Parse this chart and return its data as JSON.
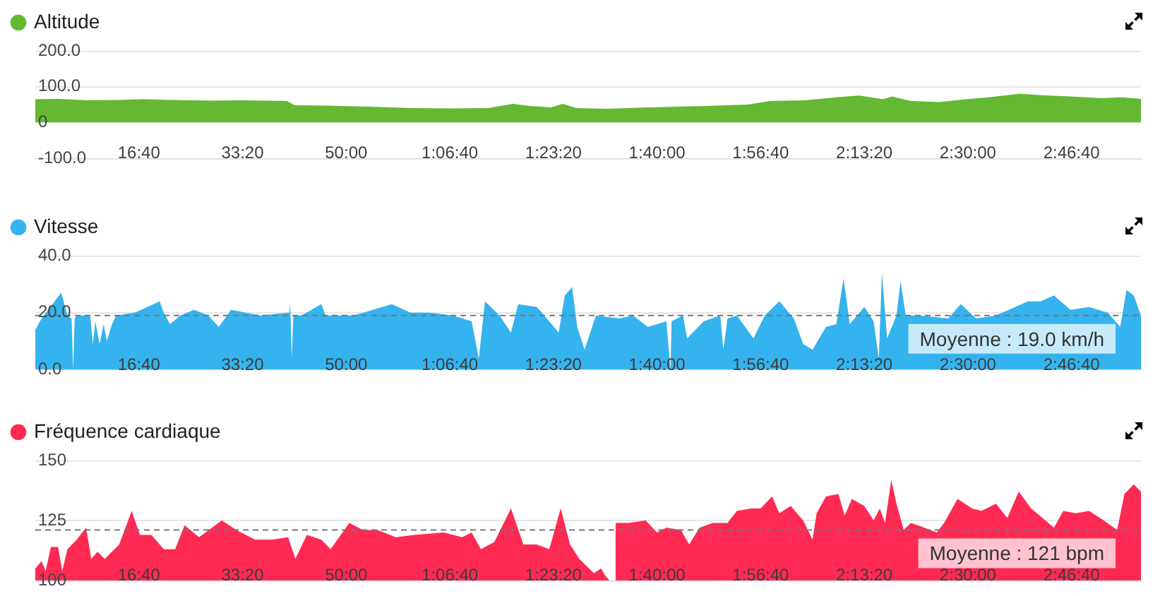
{
  "chart_data": [
    {
      "type": "area",
      "x": [
        0,
        220,
        490,
        830,
        1030,
        1300,
        1710,
        1980,
        2430,
        2500,
        2800,
        3210,
        3620,
        4030,
        4370,
        4610,
        4770,
        4980,
        5090,
        5220,
        5520,
        5930,
        6480,
        6880,
        7090,
        7430,
        7770,
        7950,
        8180,
        8270,
        8450,
        8720,
        8950,
        9200,
        9500,
        9710,
        10010,
        10290,
        10490,
        10670
      ],
      "series": [
        {
          "name": "Altitude",
          "color": "#64b832",
          "values": [
            65,
            66,
            62,
            63,
            65,
            63,
            61,
            62,
            60,
            48,
            47,
            44,
            40,
            39,
            40,
            52,
            46,
            42,
            52,
            40,
            38,
            42,
            46,
            50,
            60,
            62,
            71,
            75,
            65,
            72,
            60,
            57,
            64,
            70,
            80,
            76,
            72,
            68,
            70,
            66
          ]
        }
      ],
      "xlim": [
        0,
        10670
      ],
      "xticks": [
        {
          "value": 1000,
          "label": "16:40"
        },
        {
          "value": 2000,
          "label": "33:20"
        },
        {
          "value": 3000,
          "label": "50:00"
        },
        {
          "value": 4000,
          "label": "1:06:40"
        },
        {
          "value": 5000,
          "label": "1:23:20"
        },
        {
          "value": 6000,
          "label": "1:40:00"
        },
        {
          "value": 7000,
          "label": "1:56:40"
        },
        {
          "value": 8000,
          "label": "2:13:20"
        },
        {
          "value": 9000,
          "label": "2:30:00"
        },
        {
          "value": 10000,
          "label": "2:46:40"
        }
      ],
      "ylim": [
        -100,
        200
      ],
      "yticks": [
        {
          "value": -100,
          "label": "-100.0"
        },
        0,
        {
          "value": 100,
          "label": "100.0"
        },
        {
          "value": 200,
          "label": "200.0"
        }
      ],
      "grid": "y",
      "legend": "top left"
    },
    {
      "type": "area",
      "x": [
        0,
        60,
        250,
        310,
        350,
        365,
        380,
        400,
        530,
        555,
        580,
        620,
        660,
        690,
        740,
        780,
        960,
        1200,
        1240,
        1300,
        1400,
        1530,
        1670,
        1770,
        1890,
        2170,
        2450,
        2460,
        2475,
        2490,
        2570,
        2760,
        2800,
        3070,
        3440,
        3620,
        3800,
        4030,
        4210,
        4280,
        4340,
        4480,
        4590,
        4660,
        4840,
        4960,
        5050,
        5110,
        5180,
        5230,
        5300,
        5410,
        5640,
        5770,
        5910,
        6090,
        6130,
        6140,
        6250,
        6290,
        6450,
        6610,
        6640,
        6680,
        6770,
        6930,
        7040,
        7180,
        7320,
        7410,
        7500,
        7630,
        7730,
        7800,
        7860,
        8000,
        8090,
        8140,
        8170,
        8220,
        8310,
        8350,
        8400,
        8540,
        8810,
        8930,
        9080,
        9270,
        9580,
        9700,
        9830,
        9990,
        10170,
        10350,
        10470,
        10530,
        10600,
        10670
      ],
      "series": [
        {
          "name": "Vitesse",
          "color": "#34b3ee",
          "values": [
            14,
            18,
            27,
            19,
            18,
            0,
            18,
            19,
            19,
            9,
            17,
            9,
            16,
            10,
            16,
            19,
            20,
            24,
            20,
            16,
            19,
            21,
            19,
            15,
            21,
            19,
            20,
            23,
            4,
            19,
            19,
            23,
            19,
            19,
            23,
            20,
            20,
            19,
            17,
            4,
            24,
            19,
            13,
            23,
            22,
            17,
            13,
            26,
            29,
            15,
            7,
            19,
            18,
            19,
            15,
            17,
            0,
            17,
            19,
            11,
            17,
            19,
            7,
            18,
            19,
            11,
            19,
            24,
            18,
            9,
            7,
            15,
            16,
            32,
            16,
            22,
            17,
            4,
            34,
            11,
            19,
            31,
            19,
            19,
            18,
            23,
            18,
            19,
            24,
            24,
            26,
            21,
            22,
            20,
            15,
            28,
            26,
            19
          ]
        }
      ],
      "xlim": [
        0,
        10670
      ],
      "xticks": [
        {
          "value": 1000,
          "label": "16:40"
        },
        {
          "value": 2000,
          "label": "33:20"
        },
        {
          "value": 3000,
          "label": "50:00"
        },
        {
          "value": 4000,
          "label": "1:06:40"
        },
        {
          "value": 5000,
          "label": "1:23:20"
        },
        {
          "value": 6000,
          "label": "1:40:00"
        },
        {
          "value": 7000,
          "label": "1:56:40"
        },
        {
          "value": 8000,
          "label": "2:13:20"
        },
        {
          "value": 9000,
          "label": "2:30:00"
        },
        {
          "value": 10000,
          "label": "2:46:40"
        }
      ],
      "ylim": [
        0,
        40
      ],
      "yticks": [
        {
          "value": 0,
          "label": "0.0"
        },
        {
          "value": 20,
          "label": "20.0"
        },
        {
          "value": 40,
          "label": "40.0"
        }
      ],
      "grid": "y",
      "legend": "top left",
      "ref_lines": [
        {
          "axis": "y",
          "value": 19,
          "label": "Moyenne : 19.0 km/h",
          "color": "#777777",
          "line_style": "dashed"
        }
      ]
    },
    {
      "type": "area",
      "x": [
        0,
        60,
        100,
        150,
        220,
        260,
        310,
        400,
        490,
        540,
        600,
        670,
        810,
        930,
        1010,
        1120,
        1240,
        1350,
        1440,
        1580,
        1800,
        1940,
        2120,
        2280,
        2440,
        2510,
        2620,
        2760,
        2850,
        3030,
        3160,
        3300,
        3480,
        3660,
        3940,
        4120,
        4210,
        4300,
        4430,
        4590,
        4710,
        4840,
        4960,
        5070,
        5160,
        5250,
        5390,
        5460,
        5500,
        5540,
        5590,
        5600,
        5730,
        5890,
        6000,
        6090,
        6230,
        6310,
        6410,
        6540,
        6680,
        6770,
        6910,
        7000,
        7110,
        7180,
        7290,
        7410,
        7500,
        7540,
        7630,
        7750,
        7810,
        7880,
        8000,
        8090,
        8150,
        8200,
        8260,
        8310,
        8380,
        8450,
        8580,
        8700,
        8770,
        8900,
        9040,
        9130,
        9270,
        9380,
        9490,
        9610,
        9720,
        9830,
        9920,
        10040,
        10170,
        10310,
        10440,
        10510,
        10600,
        10670
      ],
      "series": [
        {
          "name": "Fréquence cardiaque",
          "color": "#fe2a53",
          "values": [
            105,
            108,
            104,
            114,
            114,
            104,
            113,
            117,
            122,
            109,
            112,
            109,
            115,
            129,
            119,
            119,
            113,
            113,
            123,
            118,
            125,
            121,
            117,
            117,
            118,
            109,
            119,
            117,
            113,
            124,
            121,
            121,
            118,
            119,
            120,
            118,
            120,
            113,
            116,
            130,
            115,
            115,
            113,
            130,
            115,
            109,
            103,
            105,
            102,
            100,
            100,
            124,
            124,
            125,
            120,
            122,
            121,
            115,
            122,
            124,
            124,
            129,
            130,
            130,
            135,
            128,
            131,
            125,
            117,
            128,
            135,
            136,
            127,
            134,
            131,
            125,
            130,
            124,
            142,
            132,
            121,
            124,
            122,
            120,
            124,
            134,
            130,
            129,
            132,
            126,
            137,
            130,
            126,
            122,
            129,
            128,
            129,
            125,
            121,
            136,
            140,
            137
          ]
        }
      ],
      "xlim": [
        0,
        10670
      ],
      "xticks": [
        {
          "value": 1000,
          "label": "16:40"
        },
        {
          "value": 2000,
          "label": "33:20"
        },
        {
          "value": 3000,
          "label": "50:00"
        },
        {
          "value": 4000,
          "label": "1:06:40"
        },
        {
          "value": 5000,
          "label": "1:23:20"
        },
        {
          "value": 6000,
          "label": "1:40:00"
        },
        {
          "value": 7000,
          "label": "1:56:40"
        },
        {
          "value": 8000,
          "label": "2:13:20"
        },
        {
          "value": 9000,
          "label": "2:30:00"
        },
        {
          "value": 10000,
          "label": "2:46:40"
        }
      ],
      "ylim": [
        100,
        150
      ],
      "yticks": [
        100,
        125,
        150
      ],
      "grid": "y",
      "legend": "top left",
      "ref_lines": [
        {
          "axis": "y",
          "value": 121,
          "label": "Moyenne : 121 bpm",
          "color": "#777777",
          "line_style": "dashed"
        }
      ]
    }
  ]
}
